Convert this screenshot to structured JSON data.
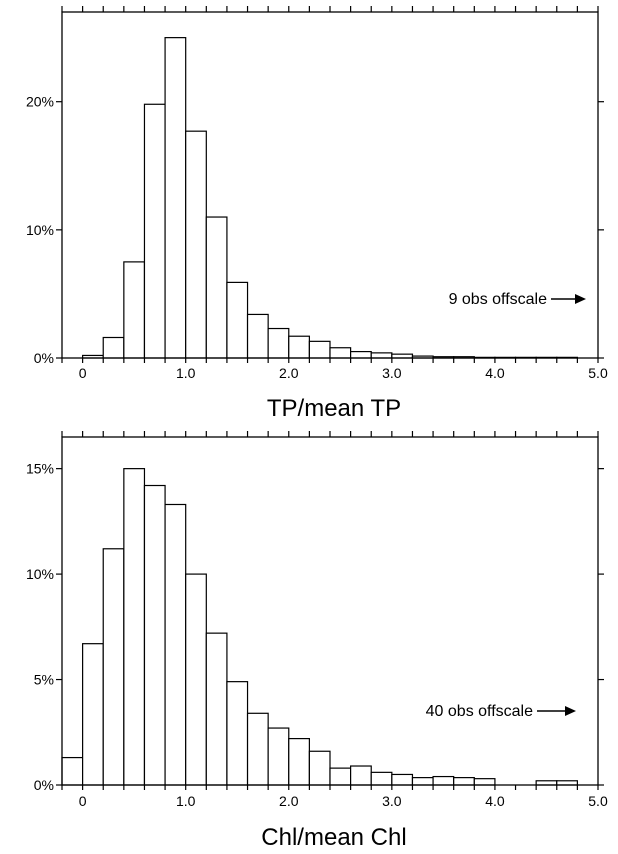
{
  "chart_data": [
    {
      "type": "bar",
      "xlabel": "TP/mean TP",
      "ylabel": "",
      "xlim": [
        -0.2,
        5.0
      ],
      "ylim": [
        0,
        27
      ],
      "x_ticks": [
        {
          "value": 0,
          "label": "0"
        },
        {
          "value": 1,
          "label": "1.0"
        },
        {
          "value": 2,
          "label": "2.0"
        },
        {
          "value": 3,
          "label": "3.0"
        },
        {
          "value": 4,
          "label": "4.0"
        },
        {
          "value": 5,
          "label": "5.0"
        }
      ],
      "y_ticks": [
        {
          "value": 0,
          "label": "0%"
        },
        {
          "value": 10,
          "label": "10%"
        },
        {
          "value": 20,
          "label": "20%"
        }
      ],
      "bin_width": 0.2,
      "bin_starts": [
        0.0,
        0.2,
        0.4,
        0.6,
        0.8,
        1.0,
        1.2,
        1.4,
        1.6,
        1.8,
        2.0,
        2.2,
        2.4,
        2.6,
        2.8,
        3.0,
        3.2,
        3.4,
        3.6,
        3.8,
        4.0,
        4.2,
        4.4,
        4.6
      ],
      "values": [
        0.2,
        1.6,
        7.5,
        19.8,
        25.0,
        17.7,
        11.0,
        5.9,
        3.4,
        2.3,
        1.7,
        1.3,
        0.8,
        0.5,
        0.4,
        0.3,
        0.15,
        0.1,
        0.1,
        0.05,
        0.05,
        0.05,
        0.05,
        0.05
      ],
      "annotation": "9 obs offscale"
    },
    {
      "type": "bar",
      "xlabel": "Chl/mean Chl",
      "ylabel": "",
      "xlim": [
        -0.2,
        5.0
      ],
      "ylim": [
        0,
        16.5
      ],
      "x_ticks": [
        {
          "value": 0,
          "label": "0"
        },
        {
          "value": 1,
          "label": "1.0"
        },
        {
          "value": 2,
          "label": "2.0"
        },
        {
          "value": 3,
          "label": "3.0"
        },
        {
          "value": 4,
          "label": "4.0"
        },
        {
          "value": 5,
          "label": "5.0"
        }
      ],
      "y_ticks": [
        {
          "value": 0,
          "label": "0%"
        },
        {
          "value": 5,
          "label": "5%"
        },
        {
          "value": 10,
          "label": "10%"
        },
        {
          "value": 15,
          "label": "15%"
        }
      ],
      "bin_width": 0.2,
      "bin_starts": [
        -0.2,
        0.0,
        0.2,
        0.4,
        0.6,
        0.8,
        1.0,
        1.2,
        1.4,
        1.6,
        1.8,
        2.0,
        2.2,
        2.4,
        2.6,
        2.8,
        3.0,
        3.2,
        3.4,
        3.6,
        3.8,
        4.0,
        4.2,
        4.4,
        4.6
      ],
      "values": [
        1.3,
        6.7,
        11.2,
        15.0,
        14.2,
        13.3,
        10.0,
        7.2,
        4.9,
        3.4,
        2.7,
        2.2,
        1.6,
        0.8,
        0.9,
        0.6,
        0.5,
        0.35,
        0.4,
        0.35,
        0.3,
        0.0,
        0.0,
        0.2,
        0.2
      ],
      "annotation": "40 obs offscale"
    }
  ]
}
